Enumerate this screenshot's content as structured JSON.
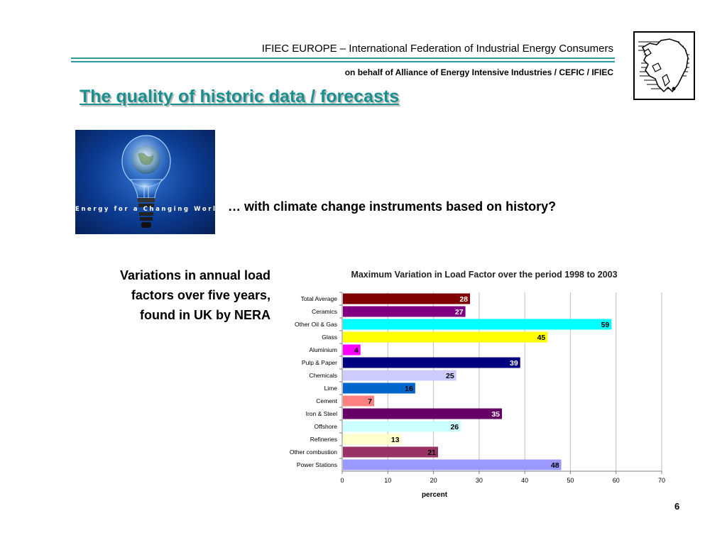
{
  "header": {
    "title": "IFIEC EUROPE – International Federation of Industrial Energy Consumers",
    "subtitle": "on behalf of Alliance of Energy Intensive Industries / CEFIC / IFIEC"
  },
  "slide": {
    "title": "The quality of historic data / forecasts",
    "image_caption": "Energy for a Changing World",
    "question": "… with climate change instruments based on history?",
    "side_note": [
      "Variations in annual load",
      "factors over five years,",
      "found in UK by NERA"
    ],
    "page_number": "6"
  },
  "logo_icon": "europe-map-icon",
  "image_icon": "lightbulb-globe-icon",
  "chart_data": {
    "type": "bar",
    "orientation": "horizontal",
    "title": "Maximum Variation in Load Factor over the period 1998 to 2003",
    "xlabel": "percent",
    "ylabel": "",
    "xlim": [
      0,
      70
    ],
    "xticks": [
      0,
      10,
      20,
      30,
      40,
      50,
      60,
      70
    ],
    "grid": "vertical",
    "legend": "none",
    "categories": [
      "Total Average",
      "Ceramics",
      "Other Oil & Gas",
      "Glass",
      "Aluminium",
      "Pulp & Paper",
      "Chemicals",
      "Lime",
      "Cement",
      "Iron & Steel",
      "Offshore",
      "Refineries",
      "Other combustion",
      "Power Stations"
    ],
    "values": [
      28,
      27,
      59,
      45,
      4,
      39,
      25,
      16,
      7,
      35,
      26,
      13,
      21,
      48
    ],
    "colors": [
      "#800000",
      "#800080",
      "#00ffff",
      "#ffff00",
      "#ff00ff",
      "#000080",
      "#ccccff",
      "#0066cc",
      "#ff8080",
      "#660066",
      "#ccffff",
      "#ffffcc",
      "#993366",
      "#9999ff"
    ],
    "label_colors": [
      "#ffffff",
      "#ffffff",
      "#000000",
      "#000000",
      "#000000",
      "#ffffff",
      "#000000",
      "#000000",
      "#000000",
      "#ffffff",
      "#000000",
      "#000000",
      "#000000",
      "#000000"
    ]
  }
}
